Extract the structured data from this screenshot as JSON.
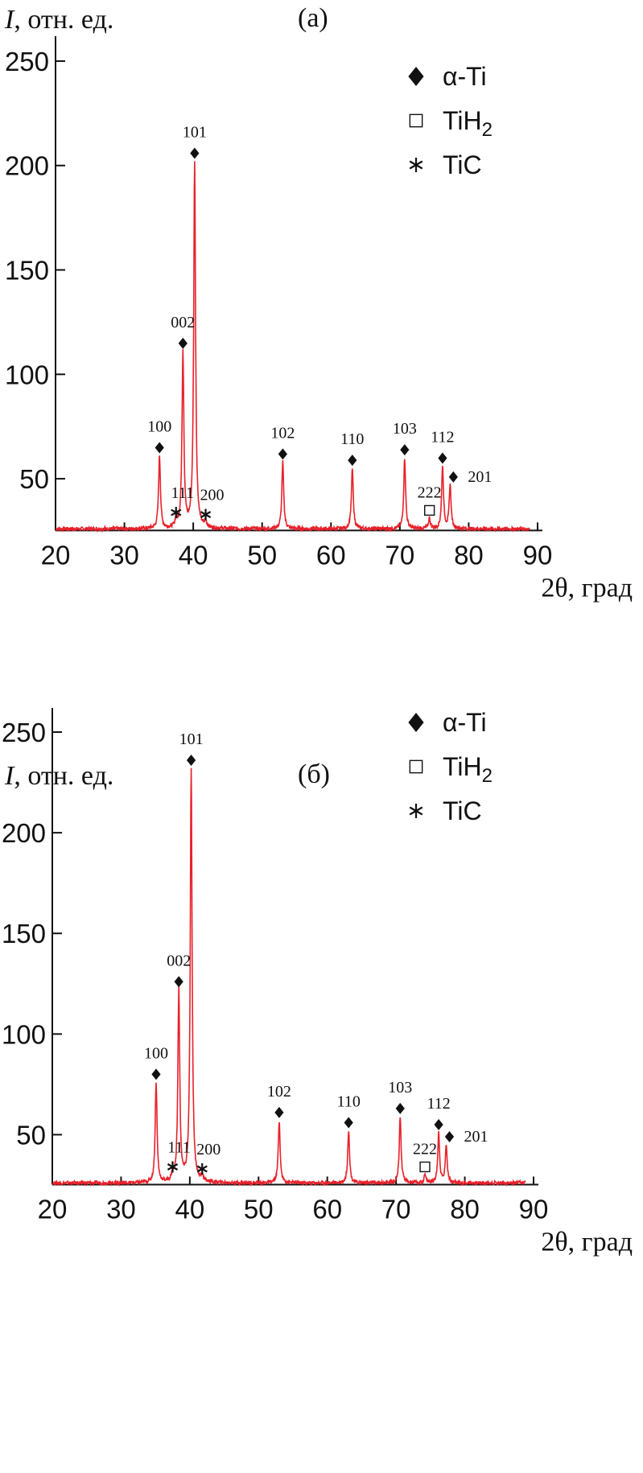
{
  "chart_data": [
    {
      "type": "line",
      "title": "(а)",
      "ylabel_var": "I",
      "ylabel_rest": ", отн. ед.",
      "xlabel": "2θ, град",
      "xlim": [
        20,
        90
      ],
      "ylim": [
        25,
        260
      ],
      "xticks": [
        20,
        30,
        40,
        50,
        60,
        70,
        80,
        90
      ],
      "yticks": [
        50,
        100,
        150,
        200,
        250
      ],
      "series_color": "#e8212b",
      "baseline": 26,
      "peaks": [
        {
          "x": 35.1,
          "h": 61,
          "label": "100",
          "phase": "α-Ti"
        },
        {
          "x": 37.5,
          "h": 30,
          "label": "111",
          "phase": "TiC"
        },
        {
          "x": 38.5,
          "h": 111,
          "label": "002",
          "phase": "α-Ti"
        },
        {
          "x": 40.2,
          "h": 202,
          "label": "101",
          "phase": "α-Ti"
        },
        {
          "x": 41.8,
          "h": 29,
          "label": "200",
          "phase": "TiC"
        },
        {
          "x": 53.0,
          "h": 58,
          "label": "102",
          "phase": "α-Ti"
        },
        {
          "x": 63.1,
          "h": 55,
          "label": "110",
          "phase": "α-Ti"
        },
        {
          "x": 70.7,
          "h": 60,
          "label": "103",
          "phase": "α-Ti"
        },
        {
          "x": 74.3,
          "h": 31,
          "label": "222",
          "phase": "TiH2"
        },
        {
          "x": 76.2,
          "h": 56,
          "label": "112",
          "phase": "α-Ti"
        },
        {
          "x": 77.3,
          "h": 47,
          "label": "201",
          "phase": "α-Ti"
        }
      ],
      "legend": [
        {
          "symbol": "diamond",
          "text": "α-Ti"
        },
        {
          "symbol": "square",
          "text": "TiH",
          "sub": "2"
        },
        {
          "symbol": "asterisk",
          "text": "TiC"
        }
      ]
    },
    {
      "type": "line",
      "title": "(б)",
      "ylabel_var": "I",
      "ylabel_rest": ", отн. ед.",
      "xlabel": "2θ, град",
      "xlim": [
        20,
        90
      ],
      "ylim": [
        25,
        260
      ],
      "xticks": [
        20,
        30,
        40,
        50,
        60,
        70,
        80,
        90
      ],
      "yticks": [
        50,
        100,
        150,
        200,
        250
      ],
      "series_color": "#e8212b",
      "baseline": 26,
      "peaks": [
        {
          "x": 35.1,
          "h": 76,
          "label": "100",
          "phase": "α-Ti"
        },
        {
          "x": 37.5,
          "h": 30,
          "label": "111",
          "phase": "TiC"
        },
        {
          "x": 38.4,
          "h": 122,
          "label": "002",
          "phase": "α-Ti"
        },
        {
          "x": 40.2,
          "h": 232,
          "label": "101",
          "phase": "α-Ti"
        },
        {
          "x": 41.8,
          "h": 29,
          "label": "200",
          "phase": "TiC"
        },
        {
          "x": 53.0,
          "h": 57,
          "label": "102",
          "phase": "α-Ti"
        },
        {
          "x": 63.1,
          "h": 52,
          "label": "110",
          "phase": "α-Ti"
        },
        {
          "x": 70.6,
          "h": 59,
          "label": "103",
          "phase": "α-Ti"
        },
        {
          "x": 74.2,
          "h": 30,
          "label": "222",
          "phase": "TiH2"
        },
        {
          "x": 76.2,
          "h": 51,
          "label": "112",
          "phase": "α-Ti"
        },
        {
          "x": 77.3,
          "h": 45,
          "label": "201",
          "phase": "α-Ti"
        }
      ],
      "legend": [
        {
          "symbol": "diamond",
          "text": "α-Ti"
        },
        {
          "symbol": "square",
          "text": "TiH",
          "sub": "2"
        },
        {
          "symbol": "asterisk",
          "text": "TiC"
        }
      ]
    }
  ]
}
